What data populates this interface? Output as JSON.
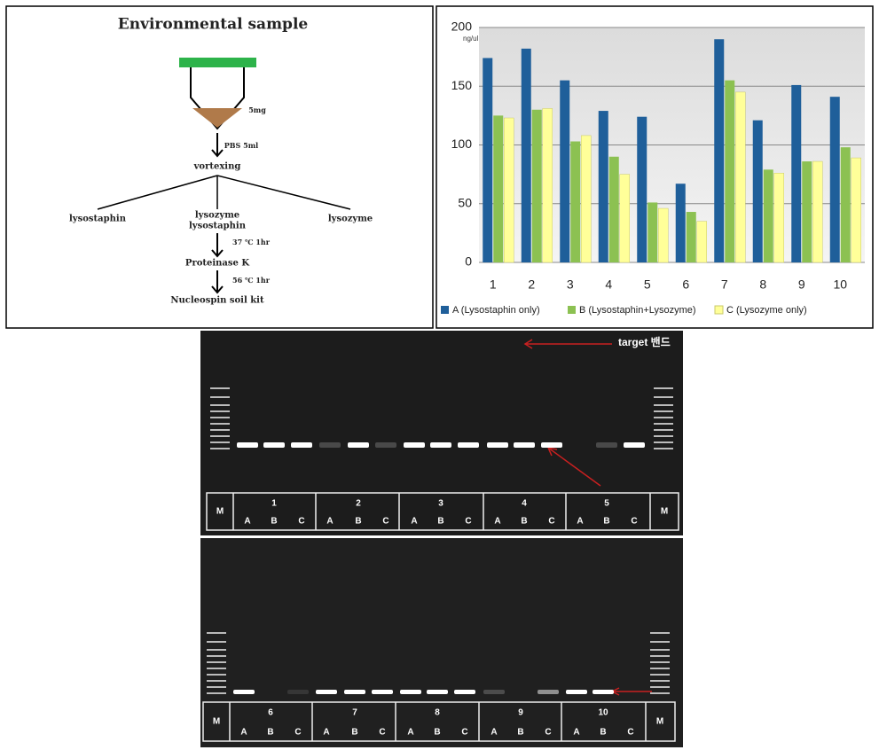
{
  "diagram": {
    "title": "Environmental sample",
    "amount": "5mg",
    "step1": "PBS 5ml",
    "step2": "vortexing",
    "branch_left": "lysostaphin",
    "branch_mid_1": "lysozyme",
    "branch_mid_2": "lysostaphin",
    "branch_right": "lysozyme",
    "step3": "37 ℃ 1hr",
    "step4": "Proteinase K",
    "step5": "56 ℃ 1hr",
    "step6": "Nucleospin soil kit"
  },
  "chart_data": {
    "type": "bar",
    "y_unit": "ng/ul",
    "categories": [
      "1",
      "2",
      "3",
      "4",
      "5",
      "6",
      "7",
      "8",
      "9",
      "10"
    ],
    "series": [
      {
        "name": "A (Lysostaphin only)",
        "color": "#1f5f9a",
        "values": [
          174,
          182,
          155,
          129,
          124,
          67,
          190,
          121,
          151,
          141
        ]
      },
      {
        "name": "B (Lysostaphin+Lysozyme)",
        "color": "#8cc152",
        "values": [
          125,
          130,
          103,
          90,
          51,
          43,
          155,
          79,
          86,
          98
        ]
      },
      {
        "name": "C (Lysozyme only)",
        "color": "#ffff99",
        "values": [
          123,
          131,
          108,
          75,
          46,
          35,
          145,
          76,
          86,
          89
        ]
      }
    ],
    "ylim": [
      0,
      200
    ],
    "yticks": [
      0,
      50,
      100,
      150,
      200
    ],
    "grid": true,
    "legend": "bottom"
  },
  "gel": {
    "annotation": "target 밴드",
    "marker": "M",
    "top_groups": [
      "1",
      "2",
      "3",
      "4",
      "5"
    ],
    "bottom_groups": [
      "6",
      "7",
      "8",
      "9",
      "10"
    ],
    "lanes": [
      "A",
      "B",
      "C"
    ]
  }
}
